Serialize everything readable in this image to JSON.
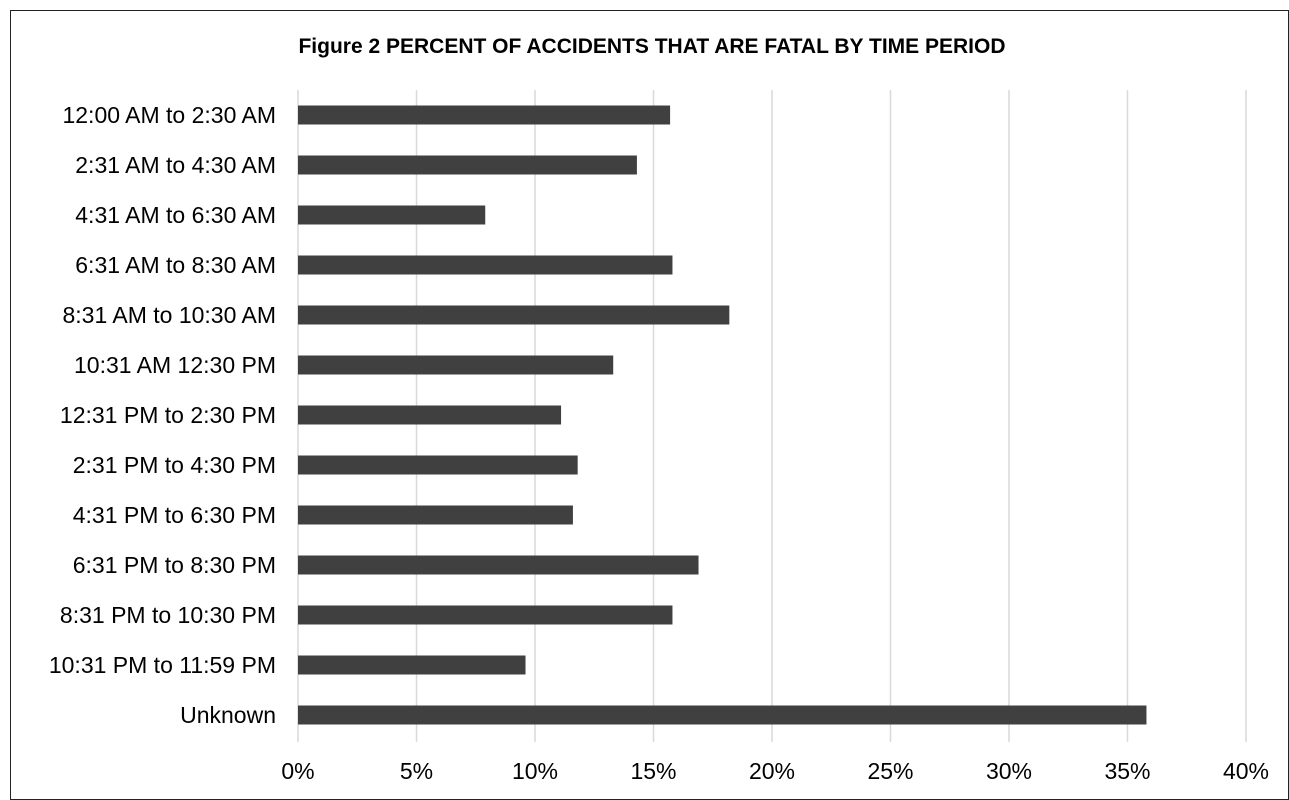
{
  "chart_data": {
    "type": "bar",
    "orientation": "horizontal",
    "title": "Figure 2 PERCENT OF ACCIDENTS THAT ARE FATAL BY TIME PERIOD",
    "categories": [
      "12:00 AM  to 2:30 AM",
      "2:31 AM to 4:30 AM",
      "4:31 AM to 6:30 AM",
      "6:31 AM to 8:30 AM",
      "8:31 AM to 10:30 AM",
      "10:31 AM 12:30 PM",
      "12:31 PM to 2:30 PM",
      "2:31 PM to 4:30 PM",
      "4:31 PM to 6:30 PM",
      "6:31 PM to 8:30 PM",
      "8:31 PM to 10:30 PM",
      "10:31 PM to 11:59 PM",
      "Unknown"
    ],
    "values": [
      15.7,
      14.3,
      7.9,
      15.8,
      18.2,
      13.3,
      11.1,
      11.8,
      11.6,
      16.9,
      15.8,
      9.6,
      35.8
    ],
    "xlim": [
      0,
      40
    ],
    "xticks": [
      0,
      5,
      10,
      15,
      20,
      25,
      30,
      35,
      40
    ],
    "xtick_labels": [
      "0%",
      "5%",
      "10%",
      "15%",
      "20%",
      "25%",
      "30%",
      "35%",
      "40%"
    ],
    "xlabel": "",
    "ylabel": "",
    "grid": "vertical",
    "legend": "none",
    "bar_color": "#404040",
    "grid_color": "#d9d9d9"
  }
}
